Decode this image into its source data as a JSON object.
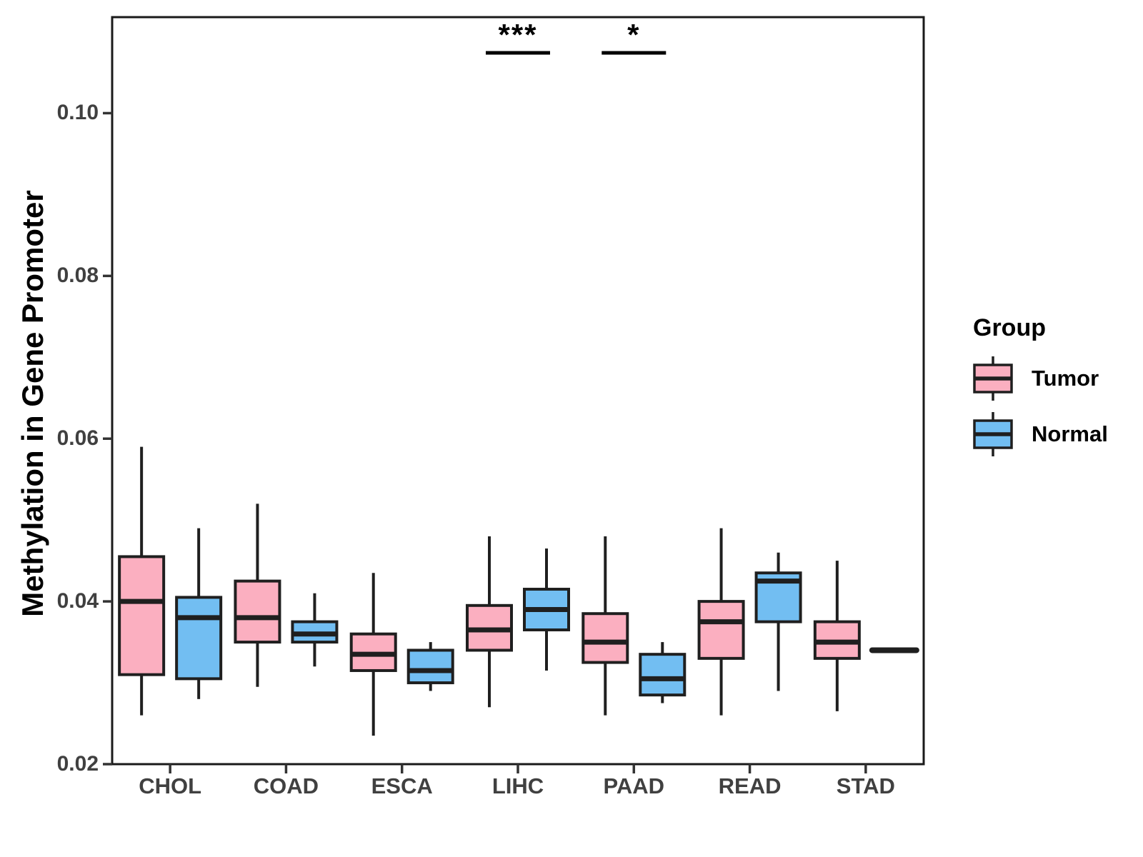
{
  "chart_data": {
    "type": "boxplot",
    "title": "",
    "xlabel": "",
    "ylabel": "Methylation in Gene Promoter",
    "categories": [
      "CHOL",
      "COAD",
      "ESCA",
      "LIHC",
      "PAAD",
      "READ",
      "STAD"
    ],
    "ylim": [
      0.02,
      0.1118
    ],
    "yticks": [
      {
        "value": 0.02,
        "label": "0.02"
      },
      {
        "value": 0.04,
        "label": "0.04"
      },
      {
        "value": 0.06,
        "label": "0.06"
      },
      {
        "value": 0.08,
        "label": "0.08"
      },
      {
        "value": 0.1,
        "label": "0.10"
      }
    ],
    "grid": false,
    "legend": {
      "title": "Group",
      "position": "right"
    },
    "series": [
      {
        "name": "Tumor",
        "color": "#FBAFC0",
        "boxes": [
          {
            "low": 0.026,
            "q1": 0.031,
            "median": 0.04,
            "q3": 0.0455,
            "high": 0.059
          },
          {
            "low": 0.0295,
            "q1": 0.035,
            "median": 0.038,
            "q3": 0.0425,
            "high": 0.052
          },
          {
            "low": 0.0235,
            "q1": 0.0315,
            "median": 0.0335,
            "q3": 0.036,
            "high": 0.0435
          },
          {
            "low": 0.027,
            "q1": 0.034,
            "median": 0.0365,
            "q3": 0.0395,
            "high": 0.048
          },
          {
            "low": 0.026,
            "q1": 0.0325,
            "median": 0.035,
            "q3": 0.0385,
            "high": 0.048
          },
          {
            "low": 0.026,
            "q1": 0.033,
            "median": 0.0375,
            "q3": 0.04,
            "high": 0.049
          },
          {
            "low": 0.0265,
            "q1": 0.033,
            "median": 0.035,
            "q3": 0.0375,
            "high": 0.045
          }
        ]
      },
      {
        "name": "Normal",
        "color": "#72BEF2",
        "boxes": [
          {
            "low": 0.028,
            "q1": 0.0305,
            "median": 0.038,
            "q3": 0.0405,
            "high": 0.049
          },
          {
            "low": 0.032,
            "q1": 0.035,
            "median": 0.036,
            "q3": 0.0375,
            "high": 0.041
          },
          {
            "low": 0.029,
            "q1": 0.03,
            "median": 0.0315,
            "q3": 0.034,
            "high": 0.035
          },
          {
            "low": 0.0315,
            "q1": 0.0365,
            "median": 0.039,
            "q3": 0.0415,
            "high": 0.0465
          },
          {
            "low": 0.0275,
            "q1": 0.0285,
            "median": 0.0305,
            "q3": 0.0335,
            "high": 0.035
          },
          {
            "low": 0.029,
            "q1": 0.0375,
            "median": 0.0425,
            "q3": 0.0435,
            "high": 0.046
          },
          {
            "low": 0.034,
            "q1": 0.034,
            "median": 0.034,
            "q3": 0.034,
            "high": 0.034
          }
        ]
      }
    ],
    "significance": [
      {
        "category": "LIHC",
        "label": "***"
      },
      {
        "category": "PAAD",
        "label": "*"
      }
    ]
  },
  "colors": {
    "tumor_fill": "#FBAFC0",
    "normal_fill": "#72BEF2",
    "box_border": "#1F1F1F",
    "axis_line": "#1A1A1A",
    "tick_text": "#404040",
    "annotation": "#000000"
  }
}
